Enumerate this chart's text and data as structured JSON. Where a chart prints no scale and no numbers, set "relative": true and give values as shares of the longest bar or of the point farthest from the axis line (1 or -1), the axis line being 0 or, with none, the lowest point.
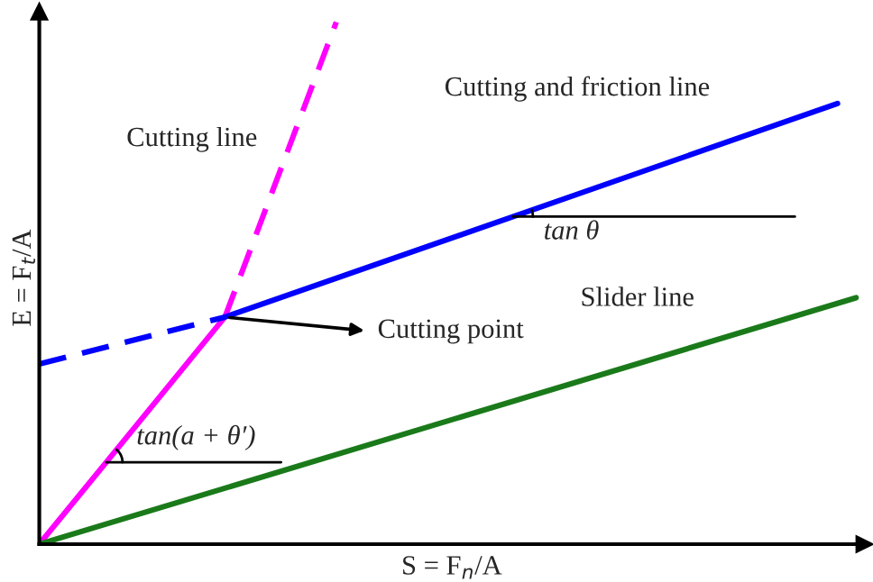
{
  "chart_data": {
    "type": "line",
    "relative": true,
    "xlabel": "S = F$_{n}$/A",
    "ylabel": "E = F$_{t}$/A",
    "legend": false,
    "categories": [
      null,
      null,
      null,
      null,
      null,
      null,
      null,
      null,
      null,
      null,
      null,
      null,
      null,
      null,
      null,
      null,
      null,
      null,
      null,
      null,
      null,
      null,
      null,
      null,
      null,
      null,
      null,
      null,
      null,
      null,
      null,
      null,
      null,
      null,
      null,
      null,
      null,
      null,
      null,
      null,
      null,
      null,
      null,
      null,
      null
    ],
    "series": [
      {
        "color": "#ff00ff",
        "line_style": "solid",
        "values": [
          0,
          null,
          null,
          null,
          null,
          null,
          null,
          null,
          null,
          null,
          0.435,
          null,
          null,
          null,
          null,
          null,
          null,
          null,
          null,
          null,
          null,
          null,
          null,
          null,
          null,
          null,
          null,
          null,
          null,
          null,
          null,
          null,
          null,
          null,
          null,
          null,
          null,
          null,
          null,
          null,
          null,
          null,
          null,
          null,
          null
        ]
      },
      {
        "color": "#ff00ff",
        "line_style": "dashed",
        "values": [
          null,
          null,
          null,
          null,
          null,
          null,
          null,
          null,
          null,
          null,
          0.435,
          null,
          null,
          null,
          null,
          null,
          1,
          null,
          null,
          null,
          null,
          null,
          null,
          null,
          null,
          null,
          null,
          null,
          null,
          null,
          null,
          null,
          null,
          null,
          null,
          null,
          null,
          null,
          null,
          null,
          null,
          null,
          null,
          null,
          null
        ]
      },
      {
        "color": "#0000ff",
        "line_style": "dashed",
        "values": [
          0.345,
          null,
          null,
          null,
          null,
          null,
          null,
          null,
          null,
          null,
          0.435,
          null,
          null,
          null,
          null,
          null,
          null,
          null,
          null,
          null,
          null,
          null,
          null,
          null,
          null,
          null,
          null,
          null,
          null,
          null,
          null,
          null,
          null,
          null,
          null,
          null,
          null,
          null,
          null,
          null,
          null,
          null,
          null,
          null,
          null
        ]
      },
      {
        "color": "#0000ff",
        "line_style": "solid",
        "values": [
          null,
          null,
          null,
          null,
          null,
          null,
          null,
          null,
          null,
          null,
          0.435,
          null,
          null,
          null,
          null,
          null,
          null,
          null,
          null,
          null,
          null,
          null,
          null,
          null,
          null,
          null,
          null,
          null,
          null,
          null,
          null,
          null,
          null,
          null,
          null,
          null,
          null,
          null,
          null,
          null,
          null,
          null,
          null,
          0.844,
          null
        ]
      },
      {
        "color": "#1a7a1a",
        "line_style": "solid",
        "values": [
          0,
          null,
          null,
          null,
          null,
          null,
          null,
          null,
          null,
          null,
          null,
          null,
          null,
          null,
          null,
          null,
          null,
          null,
          null,
          null,
          null,
          null,
          null,
          null,
          null,
          null,
          null,
          null,
          null,
          null,
          null,
          null,
          null,
          null,
          null,
          null,
          null,
          null,
          null,
          null,
          null,
          null,
          null,
          null,
          0.472
        ]
      }
    ],
    "annotations": [
      "Cutting line",
      "Cutting and friction line",
      "Cutting point",
      "tan θ",
      "Slider line",
      "tan(a + θ′)"
    ]
  }
}
